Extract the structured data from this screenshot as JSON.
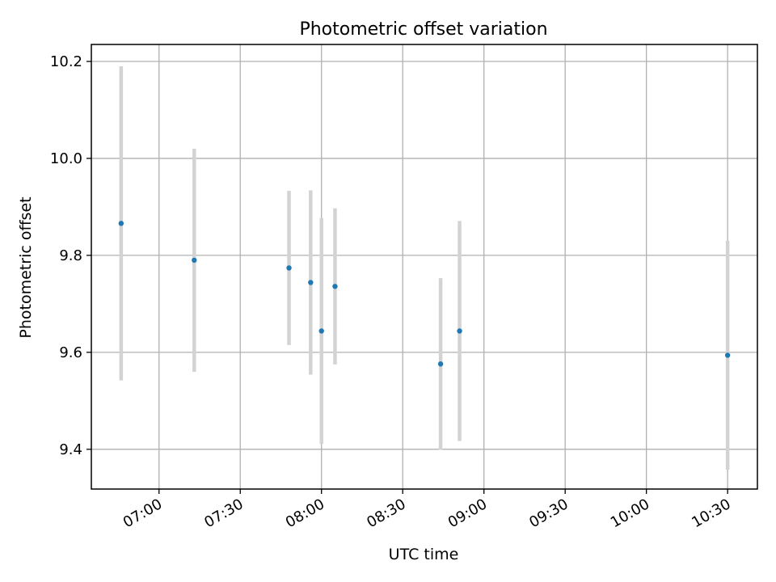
{
  "chart_data": {
    "type": "scatter",
    "title": "Photometric offset variation",
    "xlabel": "UTC time",
    "ylabel": "Photometric offset",
    "grid": true,
    "x_ticks": [
      "07:00",
      "07:30",
      "08:00",
      "08:30",
      "09:00",
      "09:30",
      "10:00",
      "10:30"
    ],
    "x_tick_minutes": [
      420,
      450,
      480,
      510,
      540,
      570,
      600,
      630
    ],
    "xlim": [
      "06:35",
      "10:41"
    ],
    "y_ticks": [
      "9.4",
      "9.6",
      "9.8",
      "10.0",
      "10.2"
    ],
    "y_tick_values": [
      9.4,
      9.6,
      9.8,
      10.0,
      10.2
    ],
    "ylim": [
      9.318,
      10.235
    ],
    "series": [
      {
        "points": [
          {
            "x": "06:46",
            "y": 9.866,
            "err": 0.324
          },
          {
            "x": "07:13",
            "y": 9.79,
            "err": 0.23
          },
          {
            "x": "07:48",
            "y": 9.774,
            "err": 0.159
          },
          {
            "x": "07:56",
            "y": 9.744,
            "err": 0.19
          },
          {
            "x": "08:00",
            "y": 9.644,
            "err": 0.233
          },
          {
            "x": "08:05",
            "y": 9.736,
            "err": 0.161
          },
          {
            "x": "08:44",
            "y": 9.576,
            "err": 0.177
          },
          {
            "x": "08:51",
            "y": 9.644,
            "err": 0.227
          },
          {
            "x": "10:30",
            "y": 9.594,
            "err": 0.236
          }
        ]
      }
    ],
    "colors": {
      "marker": "#1f77b4",
      "errorbar": "#d3d3d3",
      "grid": "#b0b0b0",
      "axes": "#000000"
    }
  }
}
